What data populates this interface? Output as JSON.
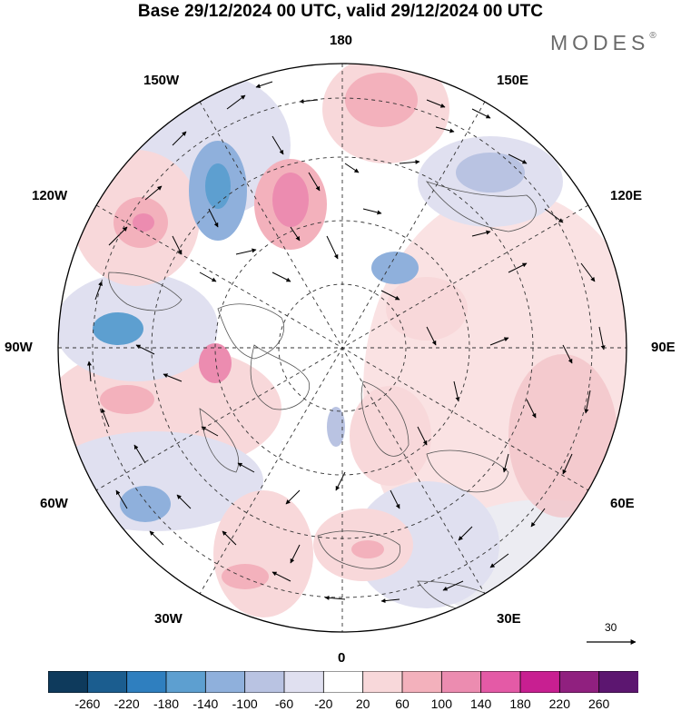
{
  "title": "Base 29/12/2024 00 UTC, valid 29/12/2024 00 UTC",
  "brand": "MODES",
  "brand_mark": "®",
  "longitude_labels": {
    "top": "180",
    "bottom": "0",
    "left": "90W",
    "right": "90E",
    "upper_left": "150W",
    "upper_left_2": "120W",
    "upper_right": "150E",
    "upper_right_2": "120E",
    "lower_left": "60W",
    "lower_left_2": "30W",
    "lower_right": "60E",
    "lower_right_2": "30E"
  },
  "reference_vector": {
    "label": "30"
  },
  "colorbar": {
    "ticks": [
      "-260",
      "-220",
      "-180",
      "-140",
      "-100",
      "-60",
      "-20",
      "20",
      "60",
      "100",
      "140",
      "180",
      "220",
      "260"
    ],
    "colors": [
      "#0e3a5c",
      "#1b5d8f",
      "#2f7fbf",
      "#5d9fd0",
      "#8fb0dc",
      "#b9c3e2",
      "#e0e0f0",
      "#ffffff",
      "#f8d8da",
      "#f3b1bc",
      "#ec8cb0",
      "#e45aa6",
      "#c81f91",
      "#90207f",
      "#5c1670"
    ]
  },
  "anomaly_fields": [
    {
      "label": "-140",
      "color": "#5d9fd0"
    },
    {
      "label": "-100",
      "color": "#8fb0dc"
    },
    {
      "label": "-60",
      "color": "#b9c3e2"
    },
    {
      "label": "-20",
      "color": "#e0e0f0"
    },
    {
      "label": "60",
      "color": "#f8d8da"
    },
    {
      "label": "100",
      "color": "#f3b1bc"
    },
    {
      "label": "140",
      "color": "#ec8cb0"
    }
  ]
}
